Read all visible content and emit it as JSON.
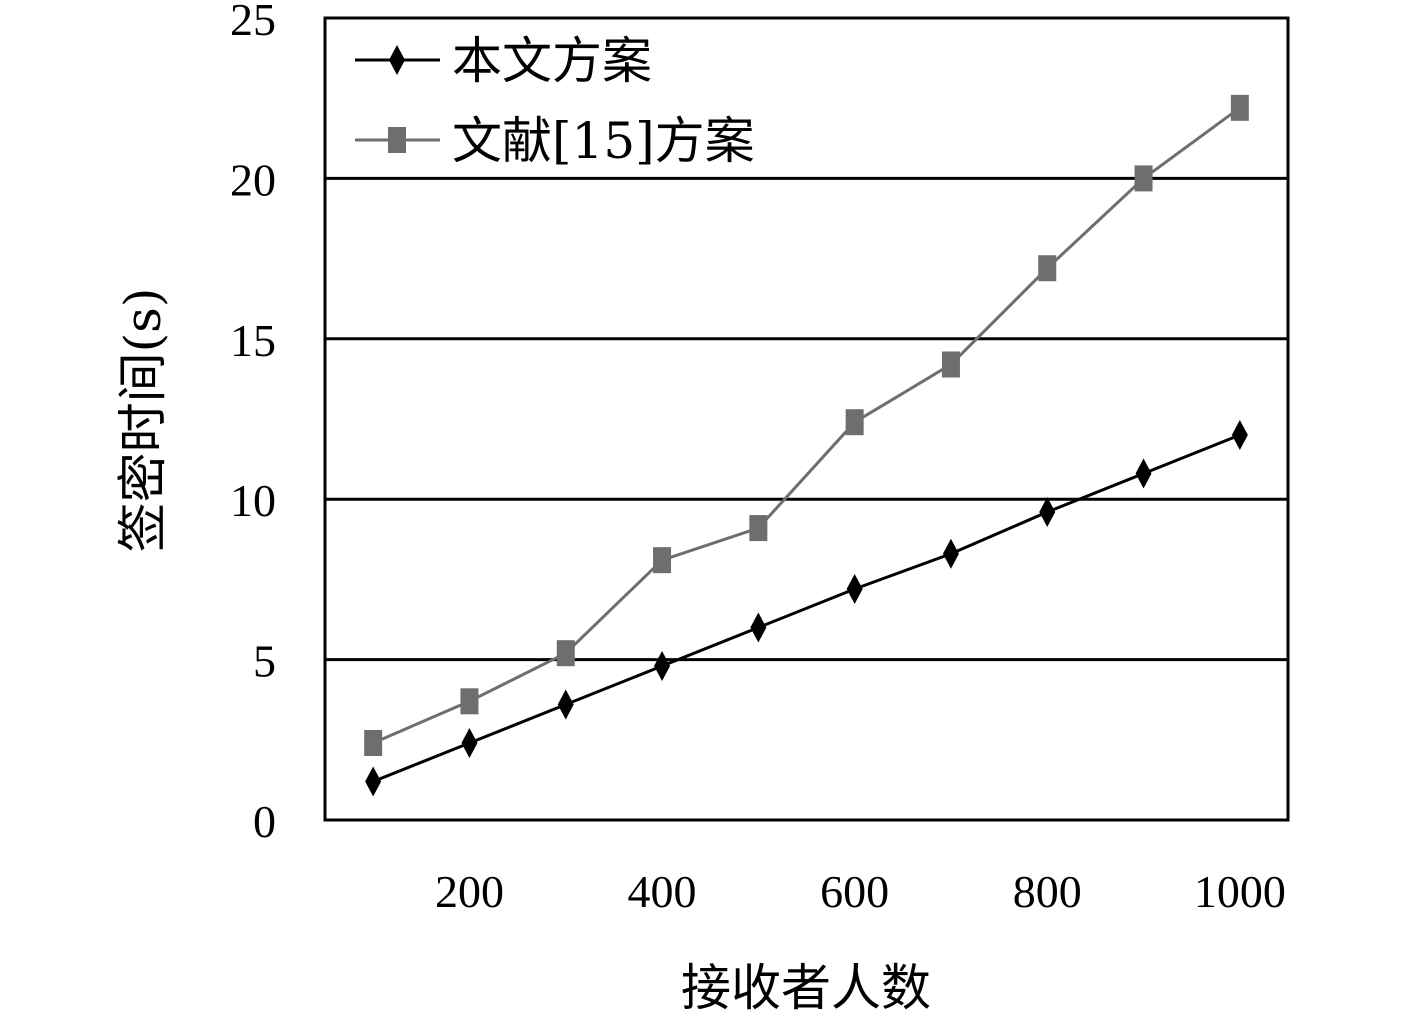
{
  "chart_data": {
    "type": "line",
    "xlabel": "接收者人数",
    "ylabel": "签密时间(s)",
    "x": [
      100,
      200,
      300,
      400,
      500,
      600,
      700,
      800,
      900,
      1000
    ],
    "xticks": [
      "200",
      "400",
      "600",
      "800",
      "1000"
    ],
    "xtick_values": [
      200,
      400,
      600,
      800,
      1000
    ],
    "yticks": [
      "0",
      "5",
      "10",
      "15",
      "20",
      "25"
    ],
    "ytick_values": [
      0,
      5,
      10,
      15,
      20,
      25
    ],
    "xlim": [
      50,
      1050
    ],
    "ylim": [
      0,
      25
    ],
    "grid": "horizontal",
    "legend_position": "top-left",
    "series": [
      {
        "name": "本文方案",
        "marker": "diamond",
        "color": "#000000",
        "values": [
          1.2,
          2.4,
          3.6,
          4.8,
          6.0,
          7.2,
          8.3,
          9.6,
          10.8,
          12.0
        ]
      },
      {
        "name": "文献[15]方案",
        "marker": "square",
        "color": "#6e6e6e",
        "values": [
          2.4,
          3.7,
          5.2,
          8.1,
          9.1,
          12.4,
          14.2,
          17.2,
          20.0,
          22.2
        ]
      }
    ]
  }
}
